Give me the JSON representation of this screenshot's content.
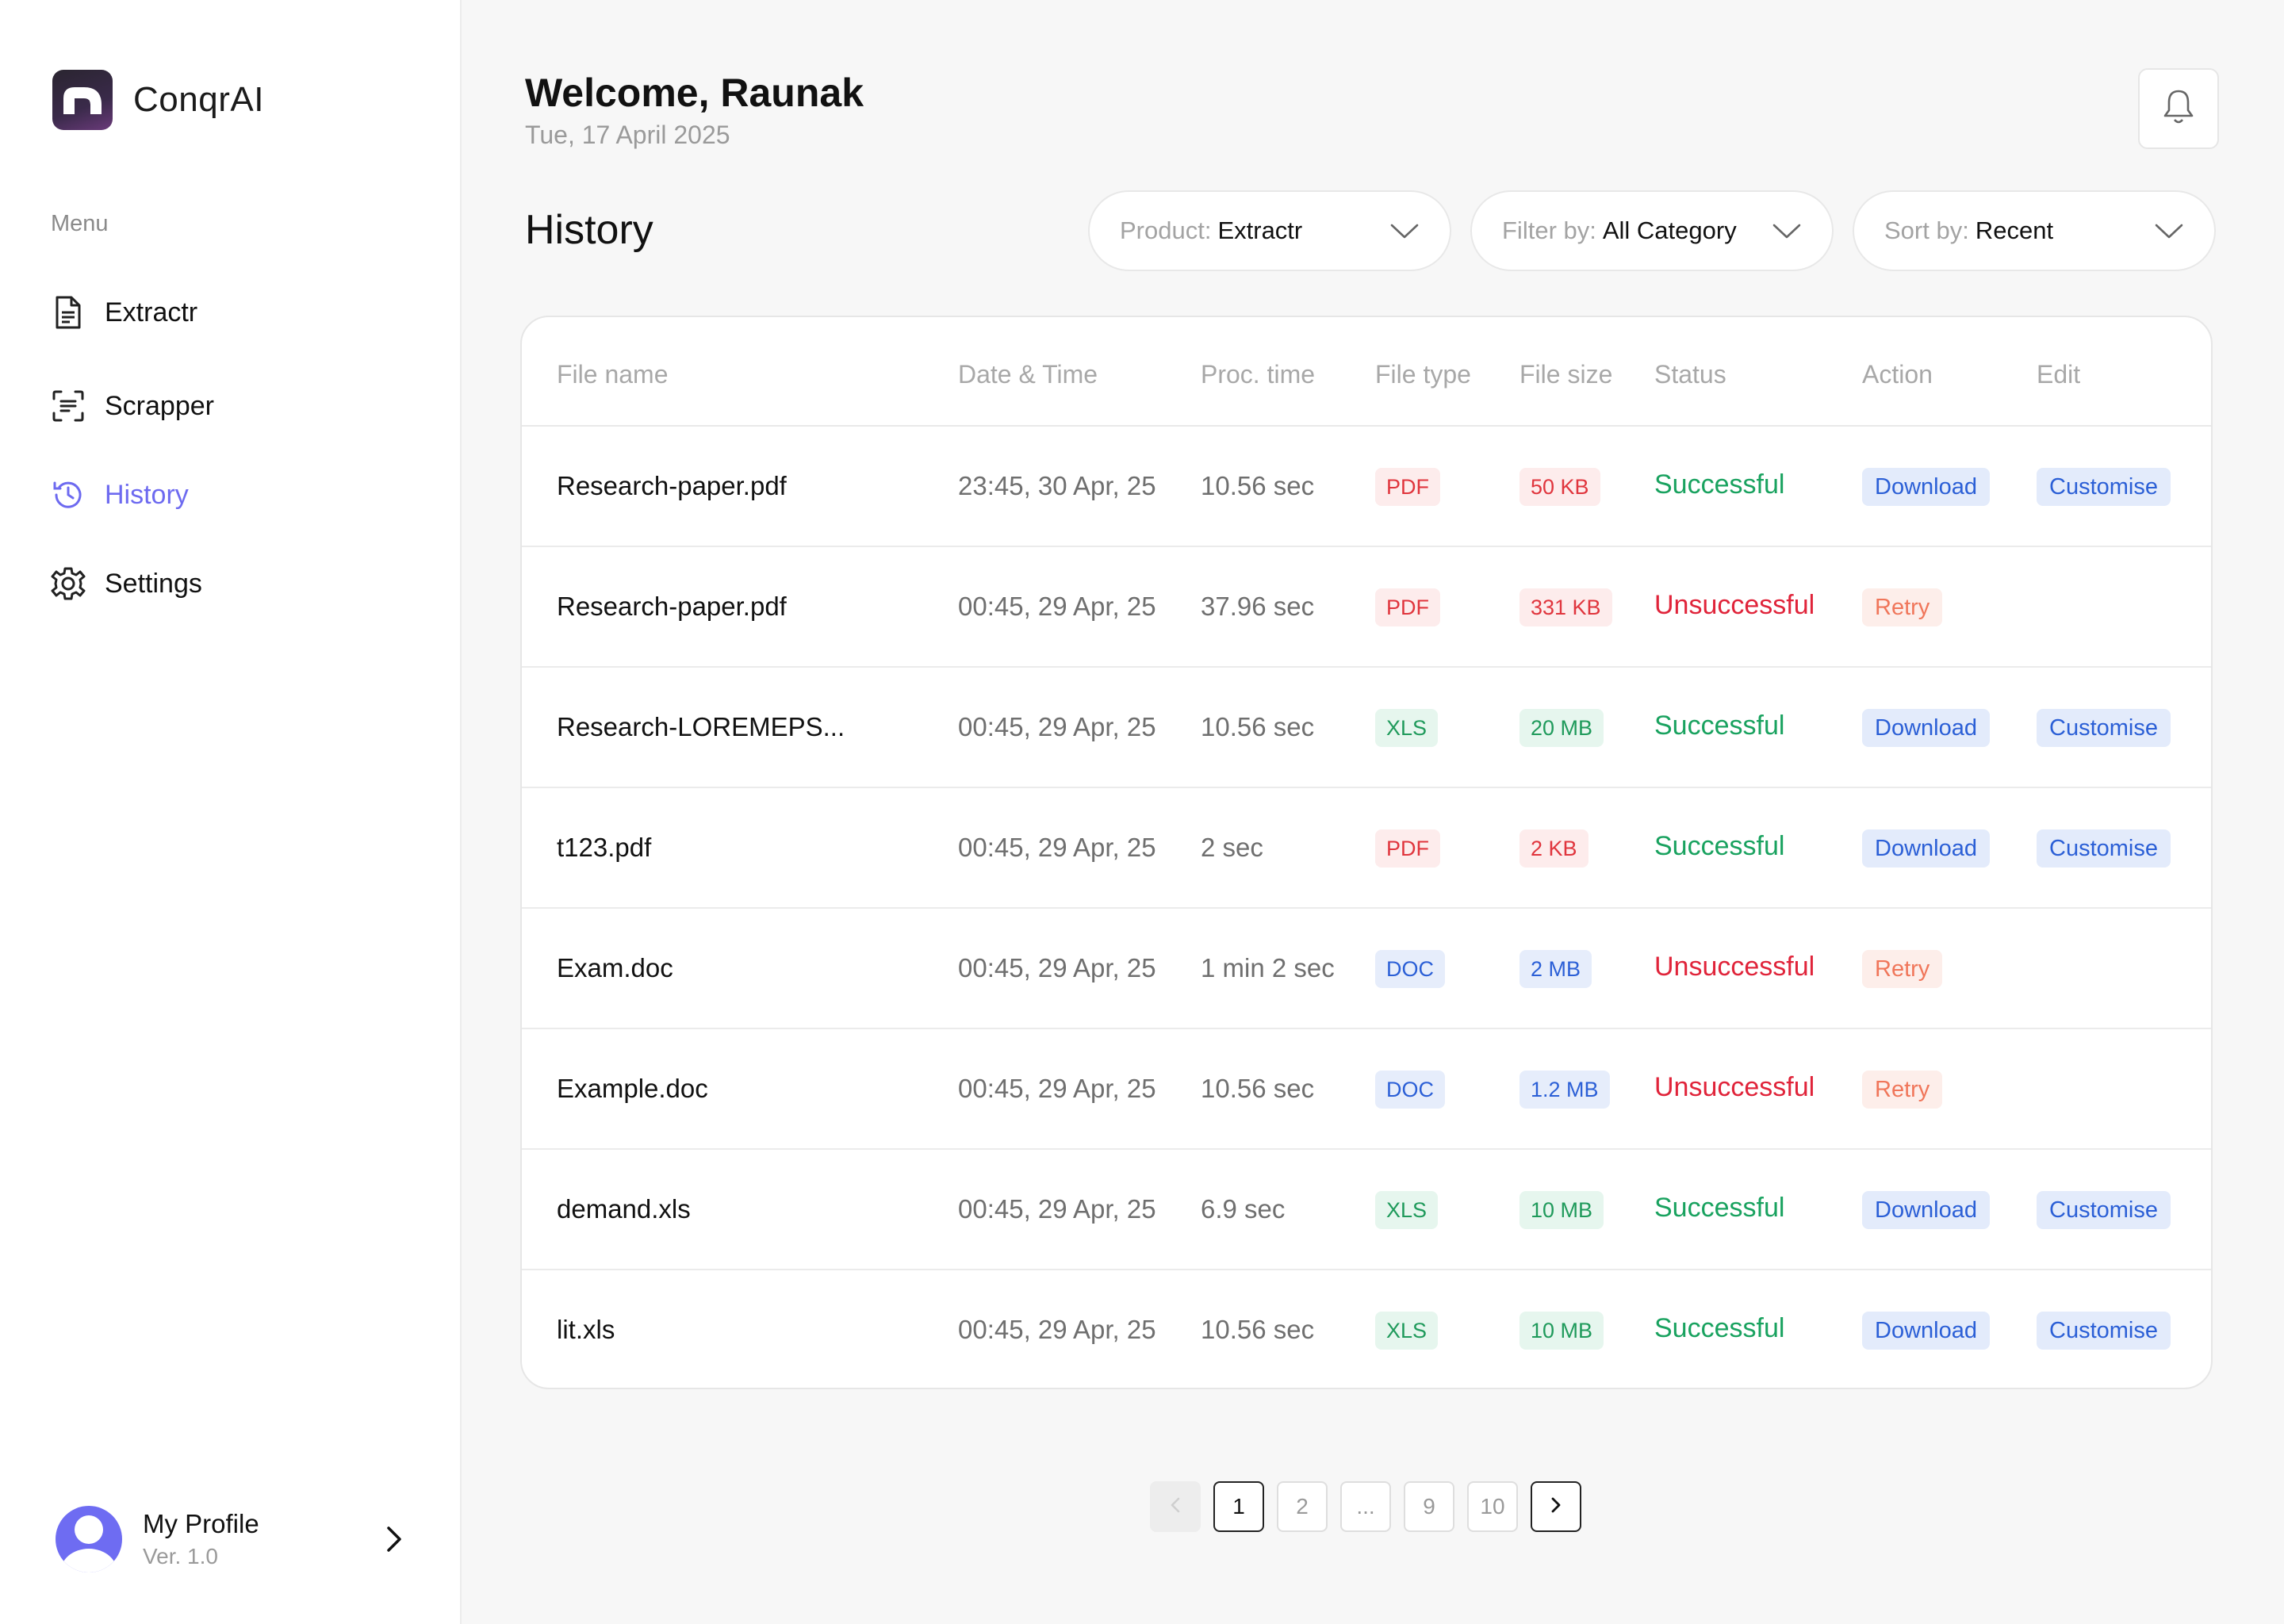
{
  "app": {
    "name": "ConqrAI"
  },
  "sidebar": {
    "menu_label": "Menu",
    "items": [
      {
        "label": "Extractr",
        "icon": "document-icon",
        "active": false
      },
      {
        "label": "Scrapper",
        "icon": "scan-text-icon",
        "active": false
      },
      {
        "label": "History",
        "icon": "history-icon",
        "active": true
      },
      {
        "label": "Settings",
        "icon": "gear-icon",
        "active": false
      }
    ],
    "profile": {
      "name": "My Profile",
      "version": "Ver. 1.0"
    }
  },
  "header": {
    "welcome": "Welcome, Raunak",
    "date": "Tue, 17 April 2025"
  },
  "history": {
    "title": "History",
    "filters": {
      "product": {
        "key": "Product:",
        "value": "Extractr"
      },
      "filter": {
        "key": "Filter by:",
        "value": "All Category"
      },
      "sort": {
        "key": "Sort by:",
        "value": "Recent"
      }
    },
    "columns": [
      "File name",
      "Date & Time",
      "Proc. time",
      "File type",
      "File size",
      "Status",
      "Action",
      "Edit"
    ],
    "rows": [
      {
        "name": "Research-paper.pdf",
        "datetime": "23:45, 30 Apr, 25",
        "proc": "10.56 sec",
        "type": "PDF",
        "size": "50 KB",
        "status": "Successful",
        "action": "Download",
        "edit": "Customise"
      },
      {
        "name": "Research-paper.pdf",
        "datetime": "00:45, 29 Apr, 25",
        "proc": "37.96 sec",
        "type": "PDF",
        "size": "331 KB",
        "status": "Unsuccessful",
        "action": "Retry",
        "edit": ""
      },
      {
        "name": "Research-LOREMEPS...",
        "datetime": "00:45, 29 Apr, 25",
        "proc": "10.56 sec",
        "type": "XLS",
        "size": "20 MB",
        "status": "Successful",
        "action": "Download",
        "edit": "Customise"
      },
      {
        "name": "t123.pdf",
        "datetime": "00:45, 29 Apr, 25",
        "proc": "2 sec",
        "type": "PDF",
        "size": "2 KB",
        "status": "Successful",
        "action": "Download",
        "edit": "Customise"
      },
      {
        "name": "Exam.doc",
        "datetime": "00:45, 29 Apr, 25",
        "proc": "1 min 2 sec",
        "type": "DOC",
        "size": "2 MB",
        "status": "Unsuccessful",
        "action": "Retry",
        "edit": ""
      },
      {
        "name": "Example.doc",
        "datetime": "00:45, 29 Apr, 25",
        "proc": "10.56 sec",
        "type": "DOC",
        "size": "1.2 MB",
        "status": "Unsuccessful",
        "action": "Retry",
        "edit": ""
      },
      {
        "name": "demand.xls",
        "datetime": "00:45, 29 Apr, 25",
        "proc": "6.9 sec",
        "type": "XLS",
        "size": "10 MB",
        "status": "Successful",
        "action": "Download",
        "edit": "Customise"
      },
      {
        "name": "lit.xls",
        "datetime": "00:45, 29 Apr, 25",
        "proc": "10.56 sec",
        "type": "XLS",
        "size": "10 MB",
        "status": "Successful",
        "action": "Download",
        "edit": "Customise"
      }
    ]
  },
  "pagination": {
    "pages": [
      "1",
      "2",
      "...",
      "9",
      "10"
    ],
    "current": "1"
  },
  "colors": {
    "accent": "#6d6af0",
    "success": "#19a25f",
    "error": "#e0243a",
    "link_blue": "#2b5fd6",
    "retry_orange": "#f0765a"
  }
}
